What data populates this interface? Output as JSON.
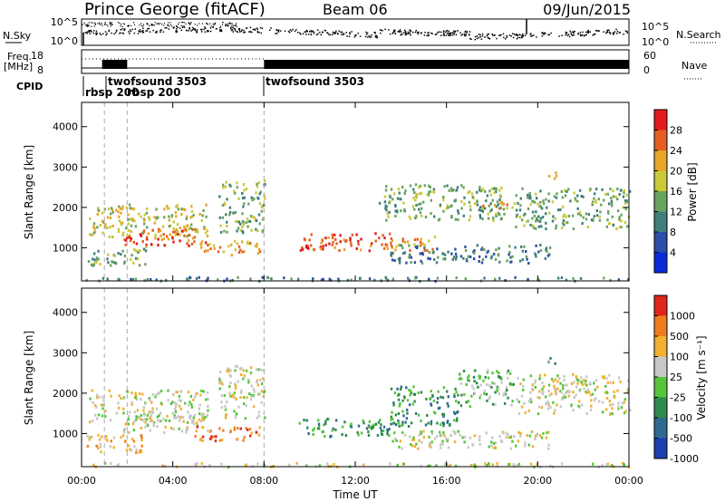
{
  "header": {
    "station": "Prince George (fitACF)",
    "beam": "Beam 06",
    "date": "09/Jun/2015"
  },
  "noise_panel": {
    "left_label": "N.Sky",
    "left_ticks": [
      "10^5",
      "10^0"
    ],
    "right_label": "N.Search",
    "right_ticks": [
      "10^5",
      "10^0"
    ]
  },
  "freq_panel": {
    "left_label_line1": "Freq.",
    "left_label_line2": "[MHz]",
    "left_ticks": [
      "18",
      "8"
    ],
    "right_label": "Nave",
    "right_ticks": [
      "60",
      "0"
    ]
  },
  "cpid": {
    "label": "CPID",
    "entries": [
      {
        "name": "twofsound 3503",
        "start_h": 1.0
      },
      {
        "name": "rbsp 200",
        "start_h": 0.0
      },
      {
        "name": "rbsp 200",
        "start_h": 1.0
      },
      {
        "name": "twofsound 3503",
        "start_h": 8.0
      }
    ]
  },
  "x_axis": {
    "label": "Time UT",
    "ticks": [
      "00:00",
      "04:00",
      "08:00",
      "12:00",
      "16:00",
      "20:00",
      "00:00"
    ],
    "range_h": [
      0,
      24
    ]
  },
  "chart_data": [
    {
      "type": "heatmap",
      "name": "power",
      "ylabel": "Slant Range [km]",
      "ylim": [
        180,
        4600
      ],
      "yticks": [
        "1000",
        "2000",
        "3000",
        "4000"
      ],
      "colorbar_label": "Power [dB]",
      "colorbar_ticks": [
        "4",
        "8",
        "12",
        "16",
        "20",
        "24",
        "28"
      ],
      "colors": [
        "#0a2bd8",
        "#2c4ea8",
        "#3f7f7a",
        "#6aa35f",
        "#c9c93a",
        "#e7a529",
        "#e55f22",
        "#e31a1c"
      ],
      "echo_regions": [
        {
          "t": [
            0.3,
            5.5
          ],
          "range_km": [
            1300,
            2100
          ],
          "level": 4
        },
        {
          "t": [
            1.8,
            5.5
          ],
          "range_km": [
            1050,
            1500
          ],
          "level": 6
        },
        {
          "t": [
            0.2,
            2.8
          ],
          "range_km": [
            550,
            1000
          ],
          "level": 3
        },
        {
          "t": [
            5.2,
            7.8
          ],
          "range_km": [
            850,
            1200
          ],
          "level": 5
        },
        {
          "t": [
            6.0,
            8.0
          ],
          "range_km": [
            1400,
            2700
          ],
          "level": 3
        },
        {
          "t": [
            9.5,
            13.5
          ],
          "range_km": [
            950,
            1400
          ],
          "level": 6
        },
        {
          "t": [
            13.5,
            15.5
          ],
          "range_km": [
            950,
            1300
          ],
          "level": 5
        },
        {
          "t": [
            13.5,
            20.5
          ],
          "range_km": [
            650,
            1100
          ],
          "level": 2
        },
        {
          "t": [
            13.0,
            18.5
          ],
          "range_km": [
            1700,
            2600
          ],
          "level": 3
        },
        {
          "t": [
            17.5,
            19.0
          ],
          "range_km": [
            2000,
            2200
          ],
          "level": 5
        },
        {
          "t": [
            20.2,
            20.8
          ],
          "range_km": [
            2700,
            2900
          ],
          "level": 6
        },
        {
          "t": [
            19.0,
            24.0
          ],
          "range_km": [
            1500,
            2500
          ],
          "level": 3
        },
        {
          "t": [
            0.0,
            24.0
          ],
          "range_km": [
            200,
            300
          ],
          "level": 2
        }
      ]
    },
    {
      "type": "heatmap",
      "name": "velocity",
      "ylabel": "Slant Range [km]",
      "ylim": [
        180,
        4600
      ],
      "yticks": [
        "1000",
        "2000",
        "3000",
        "4000"
      ],
      "colorbar_label": "Velocity [m s⁻¹]",
      "colorbar_ticks": [
        "1000",
        "500",
        "100",
        "25",
        "-25",
        "-100",
        "-500",
        "-1000"
      ],
      "colors": [
        "#1c3fae",
        "#2e6a8f",
        "#2f8a4e",
        "#57c53a",
        "#c8c8c8",
        "#f0b030",
        "#ef7d20",
        "#e0261b"
      ],
      "echo_regions": [
        {
          "t": [
            0.3,
            5.5
          ],
          "range_km": [
            1300,
            2100
          ],
          "level": 4
        },
        {
          "t": [
            1.8,
            5.5
          ],
          "range_km": [
            1050,
            1500
          ],
          "level": 4
        },
        {
          "t": [
            0.2,
            2.8
          ],
          "range_km": [
            550,
            1000
          ],
          "level": 5
        },
        {
          "t": [
            4.8,
            7.8
          ],
          "range_km": [
            850,
            1200
          ],
          "level": 6
        },
        {
          "t": [
            6.0,
            8.0
          ],
          "range_km": [
            1400,
            2700
          ],
          "level": 4
        },
        {
          "t": [
            9.5,
            13.5
          ],
          "range_km": [
            950,
            1400
          ],
          "level": 2
        },
        {
          "t": [
            13.5,
            16.5
          ],
          "range_km": [
            1200,
            2200
          ],
          "level": 2
        },
        {
          "t": [
            13.5,
            20.5
          ],
          "range_km": [
            650,
            1100
          ],
          "level": 4
        },
        {
          "t": [
            16.5,
            19.0
          ],
          "range_km": [
            1700,
            2600
          ],
          "level": 3
        },
        {
          "t": [
            20.2,
            20.8
          ],
          "range_km": [
            2700,
            2900
          ],
          "level": 3
        },
        {
          "t": [
            19.0,
            24.0
          ],
          "range_km": [
            1500,
            2500
          ],
          "level": 4
        },
        {
          "t": [
            0.0,
            24.0
          ],
          "range_km": [
            200,
            300
          ],
          "level": 4
        }
      ]
    }
  ]
}
